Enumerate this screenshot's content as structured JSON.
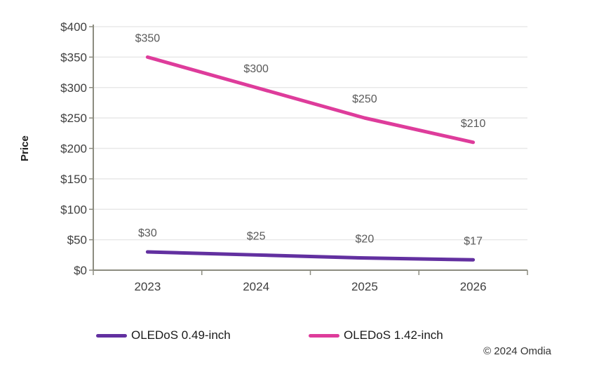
{
  "chart_data": {
    "type": "line",
    "title": "",
    "xlabel": "",
    "ylabel": "Price",
    "categories": [
      "2023",
      "2024",
      "2025",
      "2026"
    ],
    "series": [
      {
        "name": "OLEDoS 0.49-inch",
        "values": [
          30,
          25,
          20,
          17
        ],
        "labels": [
          "$30",
          "$25",
          "$20",
          "$17"
        ],
        "color": "#6230A0"
      },
      {
        "name": "OLEDoS 1.42-inch",
        "values": [
          350,
          300,
          250,
          210
        ],
        "labels": [
          "$350",
          "$300",
          "$250",
          "$210"
        ],
        "color": "#DE3C9B"
      }
    ],
    "ylim": [
      0,
      400
    ],
    "ytick_step": 50,
    "ytick_prefix": "$",
    "ytick_labels": [
      "$0",
      "$50",
      "$100",
      "$150",
      "$200",
      "$250",
      "$300",
      "$350",
      "$400"
    ],
    "grid": true,
    "legend_position": "bottom",
    "colors": {
      "grid": "#E8E8E8",
      "axis": "#8C8C80",
      "tick_label": "#3F3F3F",
      "data_label": "#595959",
      "axis_title": "#1A1A1A"
    }
  },
  "footer": {
    "copyright": "© 2024 Omdia"
  }
}
